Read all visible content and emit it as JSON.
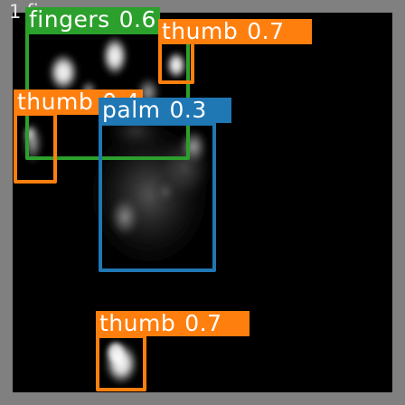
{
  "caption": {
    "prefix": "1",
    "label": "fing"
  },
  "colors": {
    "background": "#000000",
    "frame_border": "#808080",
    "fingers": "#2ca02c",
    "thumb": "#ff7f0e",
    "palm": "#1f77b4",
    "label_text": "#ffffff"
  },
  "detections": [
    {
      "id": "fingers",
      "label": "fingers",
      "score": "0.6",
      "color": "#2ca02c"
    },
    {
      "id": "thumb-top-right",
      "label": "thumb",
      "score": "0.7",
      "color": "#ff7f0e"
    },
    {
      "id": "thumb-left",
      "label": "thumb",
      "score": "0.4",
      "color": "#ff7f0e"
    },
    {
      "id": "palm",
      "label": "palm",
      "score": "0.3",
      "color": "#1f77b4"
    },
    {
      "id": "thumb-bottom",
      "label": "thumb",
      "score": "0.7",
      "color": "#ff7f0e"
    }
  ]
}
